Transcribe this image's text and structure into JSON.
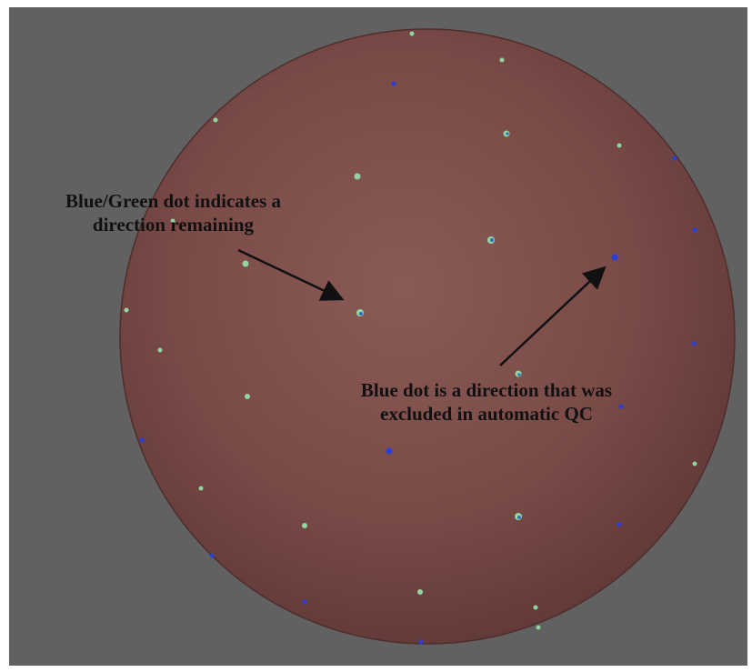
{
  "annotations": {
    "remaining": {
      "line1": "Blue/Green dot indicates a",
      "line2": "direction remaining"
    },
    "excluded": {
      "line1": "Blue dot is a direction that was",
      "line2": "excluded in automatic QC"
    }
  },
  "colors": {
    "background": "#616161",
    "sphere": "#7a4a47",
    "dot_remaining": "#8fd6a0",
    "dot_remaining_core": "#2f6cc7",
    "dot_excluded": "#2a3fd8",
    "arrow": "#111111"
  }
}
